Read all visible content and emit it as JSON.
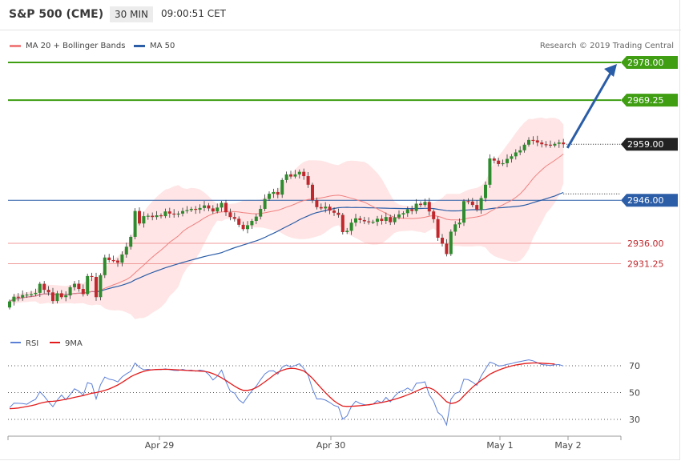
{
  "header": {
    "title": "S&P 500 (CME)",
    "interval": "30 MIN",
    "time": "09:00:51 CET"
  },
  "legend": {
    "ma20_label": "MA 20 + Bollinger Bands",
    "ma50_label": "MA 50",
    "credit": "Research © 2019 Trading Central"
  },
  "colors": {
    "up_candle": "#2e8b2e",
    "down_candle": "#c0282d",
    "ma20": "#f08080",
    "ma50": "#2c5ea8",
    "bollinger_fill": "#ffe1e1",
    "target": "#3f9e12",
    "support": "#c0282d",
    "arrow": "#2a5da8",
    "rsi": "#5b7fd6",
    "rsi_ma": "#e31b1b"
  },
  "chart_data": [
    {
      "type": "candlestick",
      "title": "S&P 500 (CME)",
      "ylim": [
        2919.4,
        2983.5
      ],
      "current_price": 2959.0,
      "levels": [
        {
          "value": 2978.0,
          "label": "2978.00",
          "kind": "target"
        },
        {
          "value": 2969.25,
          "label": "2969.25",
          "kind": "target"
        },
        {
          "value": 2959.0,
          "label": "2959.00",
          "kind": "current"
        },
        {
          "value": 2946.0,
          "label": "2946.00",
          "kind": "pivot"
        },
        {
          "value": 2936.0,
          "label": "2936.00",
          "kind": "support"
        },
        {
          "value": 2931.25,
          "label": "2931.25",
          "kind": "support"
        }
      ],
      "x_ticks": [
        "Apr 29",
        "Apr 30",
        "May 1",
        "May 2"
      ],
      "projection": {
        "from": 2958.5,
        "to": 2978.0
      },
      "series": [
        {
          "name": "MA 20 + Bollinger Bands"
        },
        {
          "name": "MA 50"
        }
      ],
      "candles_close": [
        2922.5,
        2923.6,
        2923.4,
        2924.0,
        2924.1,
        2924.2,
        2924.5,
        2926.6,
        2925.2,
        2924.6,
        2922.6,
        2924.4,
        2923.5,
        2923.9,
        2925.8,
        2926.6,
        2925.4,
        2924.2,
        2928.4,
        2928.2,
        2923.5,
        2928.6,
        2932.7,
        2932.1,
        2932.0,
        2931.5,
        2933.4,
        2935.2,
        2937.5,
        2943.5,
        2940.6,
        2942.3,
        2942.4,
        2942.1,
        2942.5,
        2942.3,
        2943.4,
        2942.9,
        2942.8,
        2942.9,
        2943.5,
        2943.7,
        2944.0,
        2943.8,
        2944.2,
        2944.8,
        2944.1,
        2943.4,
        2944.3,
        2945.4,
        2943.2,
        2942.1,
        2941.7,
        2940.3,
        2939.3,
        2940.2,
        2941.2,
        2942.2,
        2944.0,
        2946.3,
        2947.5,
        2947.9,
        2947.3,
        2950.7,
        2952.0,
        2951.5,
        2952.0,
        2952.6,
        2951.6,
        2949.6,
        2946.0,
        2944.4,
        2944.1,
        2944.5,
        2943.6,
        2943.1,
        2942.6,
        2938.6,
        2938.9,
        2940.8,
        2941.8,
        2941.4,
        2941.1,
        2940.9,
        2941.0,
        2941.7,
        2941.2,
        2942.1,
        2940.9,
        2942.0,
        2942.7,
        2943.0,
        2943.9,
        2943.5,
        2945.2,
        2944.9,
        2945.6,
        2943.4,
        2941.6,
        2937.3,
        2935.9,
        2933.5,
        2938.7,
        2940.4,
        2940.8,
        2945.8,
        2945.7,
        2944.9,
        2943.8,
        2946.5,
        2949.6,
        2955.7,
        2955.2,
        2954.4,
        2954.6,
        2955.6,
        2956.2,
        2957.1,
        2957.6,
        2958.9,
        2960.0,
        2959.9,
        2959.4,
        2959.0,
        2958.9,
        2958.7,
        2959.1,
        2959.4,
        2959.0
      ]
    },
    {
      "type": "line",
      "title": "RSI",
      "ylim": [
        20,
        80
      ],
      "y_ticks": [
        70,
        50,
        30
      ],
      "x_ticks": [
        "Apr 29",
        "Apr 30",
        "May 1",
        "May 2"
      ],
      "series": [
        {
          "name": "RSI",
          "values": [
            38.8,
            42.1,
            42.0,
            41.8,
            41.3,
            43.4,
            44.9,
            50.6,
            47.2,
            43.1,
            39.5,
            44.4,
            48.2,
            44.6,
            48.5,
            52.8,
            51.1,
            47.9,
            57.4,
            56.4,
            45.2,
            55.8,
            61.6,
            60.0,
            59.4,
            58.0,
            61.7,
            64.0,
            65.9,
            72.0,
            68.8,
            67.0,
            67.3,
            66.9,
            67.3,
            67.1,
            67.7,
            67.1,
            66.6,
            66.5,
            67.3,
            66.5,
            66.8,
            65.9,
            66.8,
            66.2,
            63.6,
            59.4,
            62.2,
            66.8,
            58.2,
            51.0,
            49.6,
            44.5,
            42.1,
            46.9,
            51.3,
            54.7,
            59.6,
            63.9,
            66.1,
            66.3,
            63.8,
            68.9,
            70.6,
            69.1,
            70.2,
            71.5,
            68.0,
            63.0,
            52.7,
            45.2,
            45.3,
            44.4,
            42.6,
            40.4,
            39.4,
            30.1,
            32.6,
            39.6,
            43.6,
            41.9,
            41.0,
            40.7,
            41.4,
            44.0,
            42.4,
            46.4,
            43.1,
            47.3,
            50.4,
            51.4,
            53.4,
            51.4,
            56.9,
            57.3,
            58.0,
            48.3,
            43.6,
            35.2,
            32.5,
            25.8,
            44.9,
            49.4,
            50.5,
            60.0,
            59.6,
            57.8,
            55.4,
            62.4,
            67.6,
            72.7,
            71.6,
            69.8,
            70.2,
            71.1,
            71.6,
            72.5,
            73.1,
            73.8,
            74.4,
            73.7,
            72.2,
            70.9,
            70.6,
            70.1,
            70.8,
            70.9,
            69.8
          ]
        },
        {
          "name": "9MA",
          "values": [
            38.0,
            38.2,
            38.5,
            39.0,
            39.6,
            40.2,
            41.0,
            42.0,
            42.8,
            43.3,
            43.5,
            43.8,
            44.4,
            45.0,
            45.7,
            46.4,
            47.1,
            47.8,
            48.7,
            49.5,
            50.0,
            50.7,
            51.6,
            52.7,
            54.1,
            55.7,
            57.6,
            59.7,
            61.8,
            63.4,
            64.7,
            65.8,
            66.6,
            67.0,
            67.2,
            67.3,
            67.3,
            67.3,
            67.1,
            66.9,
            66.7,
            66.5,
            66.3,
            66.2,
            66.0,
            65.8,
            65.2,
            64.1,
            62.7,
            61.0,
            59.0,
            56.9,
            54.8,
            52.9,
            51.7,
            51.6,
            52.3,
            53.7,
            55.7,
            58.0,
            60.4,
            62.9,
            65.1,
            66.6,
            67.6,
            68.1,
            67.9,
            67.2,
            66.1,
            63.7,
            60.6,
            57.0,
            53.4,
            49.9,
            46.7,
            43.8,
            41.6,
            39.9,
            39.7,
            39.8,
            40.0,
            40.2,
            40.5,
            40.9,
            41.4,
            42.0,
            42.6,
            43.3,
            44.1,
            45.0,
            46.0,
            47.1,
            48.3,
            49.6,
            51.1,
            52.5,
            53.7,
            53.6,
            52.2,
            49.6,
            46.5,
            43.2,
            41.8,
            42.4,
            44.1,
            47.6,
            50.8,
            54.0,
            56.6,
            59.1,
            61.3,
            63.7,
            65.3,
            66.7,
            67.9,
            69.0,
            69.9,
            70.6,
            71.1,
            71.6,
            71.9,
            72.1,
            72.1,
            71.9,
            71.7,
            71.5,
            71.3
          ]
        }
      ]
    }
  ]
}
